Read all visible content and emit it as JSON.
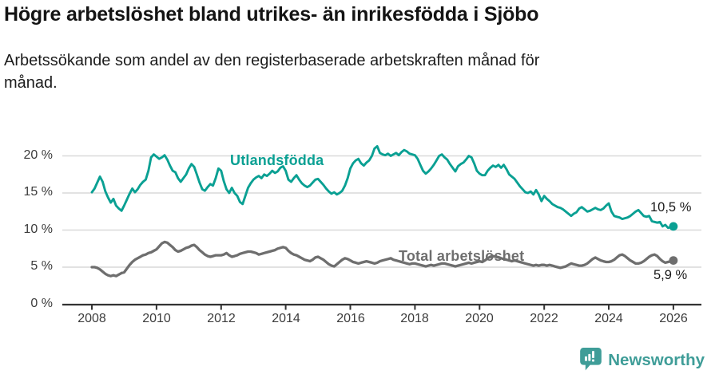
{
  "header": {
    "title": "Högre arbetslöshet bland utrikes- än inrikesfödda i Sjöbo",
    "subtitle": "Arbetssökande som andel av den registerbaserade arbetskraften månad för månad."
  },
  "chart_data": {
    "type": "line",
    "title": "Högre arbetslöshet bland utrikes- än inrikesfödda i Sjöbo",
    "subtitle": "Arbetssökande som andel av den registerbaserade arbetskraften månad för månad.",
    "unit": "%",
    "grid": "horizontal",
    "legend_position": "inline-labels",
    "x_start_year": 2008,
    "x_step_months": 1,
    "ylim": [
      0,
      21.5
    ],
    "xlim": [
      2007.1,
      2026.9
    ],
    "y_tick_labels": [
      "0 %",
      "5 %",
      "10 %",
      "15 %",
      "20 %"
    ],
    "y_tick_values": [
      0,
      5,
      10,
      15,
      20
    ],
    "x_tick_labels": [
      "2008",
      "2010",
      "2012",
      "2014",
      "2016",
      "2018",
      "2020",
      "2022",
      "2024",
      "2026"
    ],
    "x_tick_values": [
      2008,
      2010,
      2012,
      2014,
      2016,
      2018,
      2020,
      2022,
      2024,
      2026
    ],
    "series": [
      {
        "name": "Utlandsfödda",
        "color": "#0aa093",
        "end_value": 10.5,
        "end_label": "10,5 %",
        "values": [
          15.1,
          15.6,
          16.4,
          17.2,
          16.5,
          15.2,
          14.4,
          13.7,
          14.2,
          13.3,
          12.9,
          12.6,
          13.3,
          14.1,
          14.9,
          15.6,
          15.1,
          15.5,
          16.1,
          16.5,
          16.8,
          18.0,
          19.8,
          20.2,
          19.9,
          19.6,
          19.8,
          20.1,
          19.5,
          18.7,
          18.0,
          17.8,
          17.0,
          16.5,
          17.0,
          17.5,
          18.3,
          18.9,
          18.5,
          17.5,
          16.4,
          15.5,
          15.3,
          15.8,
          16.2,
          16.0,
          17.0,
          18.3,
          18.0,
          16.6,
          15.5,
          15.0,
          15.7,
          15.0,
          14.6,
          13.8,
          13.5,
          14.6,
          15.7,
          16.3,
          16.8,
          17.1,
          17.3,
          17.0,
          17.5,
          17.3,
          17.6,
          18.0,
          17.7,
          17.9,
          18.4,
          18.6,
          18.0,
          16.8,
          16.5,
          17.0,
          17.4,
          16.8,
          16.3,
          16.0,
          15.8,
          16.0,
          16.4,
          16.8,
          16.9,
          16.5,
          16.1,
          15.6,
          15.2,
          14.9,
          15.1,
          14.8,
          15.0,
          15.3,
          16.0,
          17.0,
          18.3,
          19.0,
          19.4,
          19.6,
          19.0,
          18.7,
          19.1,
          19.4,
          20.0,
          21.0,
          21.3,
          20.4,
          20.2,
          20.1,
          20.3,
          20.0,
          20.2,
          20.4,
          20.1,
          20.5,
          20.8,
          20.6,
          20.3,
          20.2,
          20.1,
          19.6,
          18.8,
          18.0,
          17.6,
          17.9,
          18.3,
          18.8,
          19.4,
          20.0,
          20.2,
          19.8,
          19.5,
          18.9,
          18.4,
          17.9,
          18.6,
          18.9,
          19.1,
          19.5,
          20.0,
          19.8,
          19.0,
          18.0,
          17.6,
          17.4,
          17.4,
          18.0,
          18.4,
          18.7,
          18.5,
          18.8,
          18.4,
          18.8,
          18.2,
          17.5,
          17.2,
          16.9,
          16.4,
          15.9,
          15.5,
          15.1,
          15.0,
          15.2,
          14.8,
          15.4,
          14.8,
          13.9,
          14.6,
          14.2,
          13.9,
          13.5,
          13.3,
          13.1,
          13.0,
          12.8,
          12.5,
          12.2,
          11.9,
          12.2,
          12.4,
          12.9,
          13.1,
          12.8,
          12.5,
          12.6,
          12.8,
          13.0,
          12.8,
          12.7,
          12.9,
          13.3,
          13.6,
          12.5,
          11.9,
          11.8,
          11.7,
          11.5,
          11.6,
          11.7,
          11.9,
          12.2,
          12.5,
          12.7,
          12.3,
          11.9,
          11.8,
          11.9,
          11.2,
          11.1,
          11.0,
          11.1,
          10.5,
          10.7,
          10.3,
          10.4,
          10.5
        ]
      },
      {
        "name": "Total arbetslöshet",
        "color": "#6e6e6e",
        "end_value": 5.9,
        "end_label": "5,9 %",
        "values": [
          5.0,
          5.0,
          4.9,
          4.7,
          4.4,
          4.1,
          3.9,
          3.8,
          3.9,
          3.8,
          4.0,
          4.2,
          4.3,
          4.8,
          5.3,
          5.7,
          6.0,
          6.2,
          6.4,
          6.6,
          6.7,
          6.9,
          7.0,
          7.2,
          7.4,
          7.8,
          8.2,
          8.4,
          8.3,
          8.0,
          7.7,
          7.3,
          7.1,
          7.2,
          7.4,
          7.6,
          7.7,
          7.9,
          8.0,
          7.7,
          7.3,
          7.0,
          6.7,
          6.5,
          6.4,
          6.5,
          6.6,
          6.6,
          6.6,
          6.7,
          6.9,
          6.6,
          6.4,
          6.5,
          6.6,
          6.8,
          6.9,
          7.0,
          7.1,
          7.1,
          7.0,
          6.9,
          6.7,
          6.8,
          6.9,
          7.0,
          7.1,
          7.2,
          7.3,
          7.5,
          7.6,
          7.7,
          7.6,
          7.2,
          6.9,
          6.7,
          6.6,
          6.4,
          6.2,
          6.0,
          5.9,
          5.8,
          6.0,
          6.3,
          6.4,
          6.2,
          6.0,
          5.7,
          5.4,
          5.2,
          5.1,
          5.4,
          5.7,
          6.0,
          6.2,
          6.1,
          5.9,
          5.7,
          5.6,
          5.5,
          5.6,
          5.7,
          5.8,
          5.7,
          5.6,
          5.5,
          5.6,
          5.8,
          5.9,
          6.0,
          6.1,
          6.2,
          6.0,
          5.9,
          5.8,
          5.7,
          5.6,
          5.5,
          5.4,
          5.5,
          5.5,
          5.4,
          5.3,
          5.2,
          5.1,
          5.2,
          5.3,
          5.2,
          5.3,
          5.4,
          5.5,
          5.5,
          5.4,
          5.3,
          5.2,
          5.1,
          5.2,
          5.3,
          5.4,
          5.5,
          5.6,
          5.5,
          5.6,
          5.7,
          5.8,
          5.7,
          5.9,
          6.2,
          6.4,
          6.5,
          6.4,
          6.3,
          6.2,
          6.1,
          6.0,
          5.9,
          5.8,
          5.9,
          5.8,
          5.7,
          5.6,
          5.5,
          5.4,
          5.3,
          5.2,
          5.3,
          5.2,
          5.3,
          5.3,
          5.2,
          5.3,
          5.2,
          5.1,
          5.0,
          4.9,
          5.0,
          5.1,
          5.3,
          5.5,
          5.4,
          5.3,
          5.2,
          5.2,
          5.3,
          5.5,
          5.8,
          6.1,
          6.3,
          6.1,
          5.9,
          5.8,
          5.7,
          5.7,
          5.8,
          6.0,
          6.3,
          6.6,
          6.7,
          6.5,
          6.2,
          5.9,
          5.7,
          5.5,
          5.5,
          5.6,
          5.8,
          6.1,
          6.4,
          6.6,
          6.7,
          6.5,
          6.1,
          5.8,
          5.6,
          5.7,
          5.8,
          5.9
        ]
      }
    ]
  },
  "colors": {
    "teal": "#0aa093",
    "gray_line": "#6e6e6e",
    "gridline": "#d9d9d9",
    "axis": "#333333",
    "text": "#1a1a1a",
    "brand_teal": "#3f9d98"
  },
  "footer": {
    "brand": "Newsworthy"
  }
}
